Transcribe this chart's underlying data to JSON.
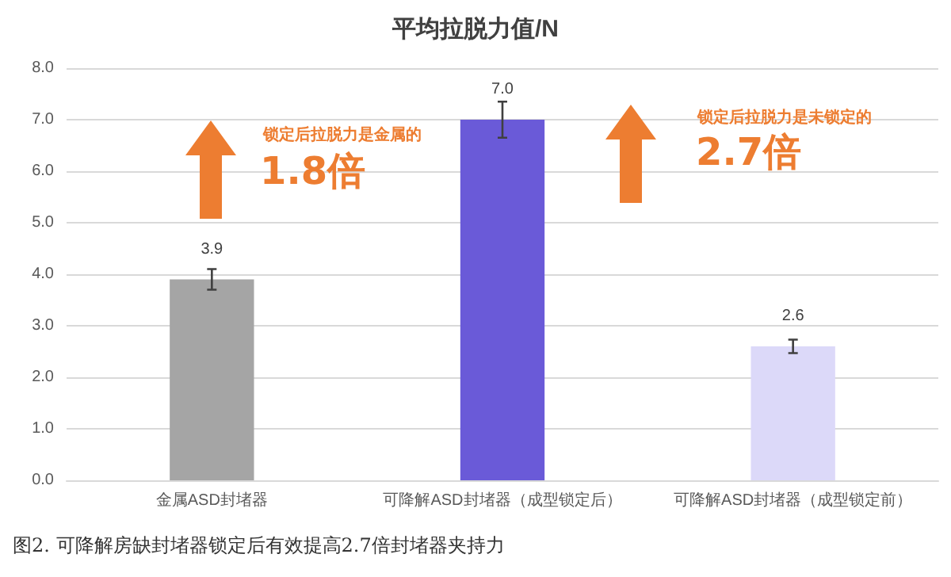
{
  "chart_data": {
    "type": "bar",
    "title": "平均拉脱力值/N",
    "categories": [
      "金属ASD封堵器",
      "可降解ASD封堵器（成型锁定后）",
      "可降解ASD封堵器（成型锁定前）"
    ],
    "values": [
      3.9,
      7.0,
      2.6
    ],
    "colors": [
      "#a5a5a5",
      "#6a5ad8",
      "#dcd9f9"
    ],
    "errors": [
      0.2,
      0.35,
      0.13
    ],
    "ylim": [
      0,
      8
    ],
    "yticks": [
      {
        "value": 0,
        "label": "0.0"
      },
      {
        "value": 1,
        "label": "1.0"
      },
      {
        "value": 2,
        "label": "2.0"
      },
      {
        "value": 3,
        "label": "3.0"
      },
      {
        "value": 4,
        "label": "4.0"
      },
      {
        "value": 5,
        "label": "5.0"
      },
      {
        "value": 6,
        "label": "6.0"
      },
      {
        "value": 7,
        "label": "7.0"
      },
      {
        "value": 8,
        "label": "8.0"
      }
    ],
    "grid": "y",
    "value_labels": [
      "3.9",
      "7.0",
      "2.6"
    ],
    "annotations": [
      "锁定后拉脱力是金属的",
      "1.8倍",
      "锁定后拉脱力是未锁定的",
      "2.7倍",
      "图2.  可降解房缺封堵器锁定后有效提高2.7倍封堵器夹持力"
    ]
  }
}
